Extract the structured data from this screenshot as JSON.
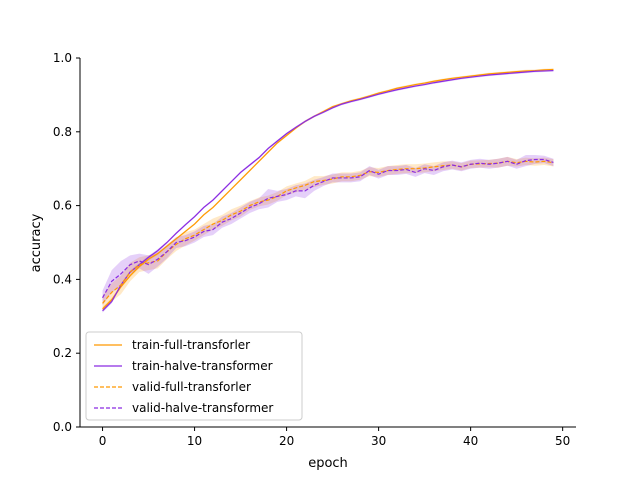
{
  "chart_data": {
    "type": "line",
    "xlabel": "epoch",
    "ylabel": "accuracy",
    "xlim": [
      -2.45,
      51.45
    ],
    "ylim": [
      0.0,
      1.0
    ],
    "xticks": [
      0,
      10,
      20,
      30,
      40,
      50
    ],
    "yticks": [
      0.0,
      0.2,
      0.4,
      0.6,
      0.8,
      1.0
    ],
    "xtick_labels": [
      "0",
      "10",
      "20",
      "30",
      "40",
      "50"
    ],
    "ytick_labels": [
      "0.0",
      "0.2",
      "0.4",
      "0.6",
      "0.8",
      "1.0"
    ],
    "grid": false,
    "legend_position": "lower-left",
    "x": [
      0,
      1,
      2,
      3,
      4,
      5,
      6,
      7,
      8,
      9,
      10,
      11,
      12,
      13,
      14,
      15,
      16,
      17,
      18,
      19,
      20,
      21,
      22,
      23,
      24,
      25,
      26,
      27,
      28,
      29,
      30,
      31,
      32,
      33,
      34,
      35,
      36,
      37,
      38,
      39,
      40,
      41,
      42,
      43,
      44,
      45,
      46,
      47,
      48,
      49
    ],
    "series": [
      {
        "name": "train-full-transforler",
        "color": "#ff9900",
        "dashed": false,
        "values": [
          0.32,
          0.345,
          0.38,
          0.41,
          0.435,
          0.455,
          0.47,
          0.49,
          0.51,
          0.53,
          0.55,
          0.575,
          0.595,
          0.62,
          0.645,
          0.67,
          0.695,
          0.72,
          0.745,
          0.77,
          0.79,
          0.81,
          0.828,
          0.842,
          0.855,
          0.868,
          0.876,
          0.884,
          0.89,
          0.897,
          0.905,
          0.911,
          0.918,
          0.923,
          0.928,
          0.932,
          0.937,
          0.941,
          0.945,
          0.948,
          0.951,
          0.954,
          0.957,
          0.959,
          0.961,
          0.963,
          0.965,
          0.966,
          0.968,
          0.969
        ],
        "band": [
          0.005,
          0.005,
          0.004,
          0.004,
          0.004,
          0.004,
          0.004,
          0.003,
          0.003,
          0.003,
          0.003,
          0.003,
          0.003,
          0.003,
          0.003,
          0.003,
          0.003,
          0.003,
          0.003,
          0.003,
          0.003,
          0.003,
          0.003,
          0.003,
          0.003,
          0.003,
          0.003,
          0.003,
          0.003,
          0.003,
          0.003,
          0.003,
          0.003,
          0.003,
          0.003,
          0.003,
          0.003,
          0.003,
          0.003,
          0.003,
          0.003,
          0.003,
          0.003,
          0.003,
          0.003,
          0.003,
          0.003,
          0.003,
          0.003,
          0.003
        ]
      },
      {
        "name": "train-halve-transformer",
        "color": "#8a2be2",
        "dashed": false,
        "values": [
          0.315,
          0.34,
          0.385,
          0.42,
          0.44,
          0.46,
          0.478,
          0.5,
          0.525,
          0.548,
          0.57,
          0.595,
          0.615,
          0.64,
          0.665,
          0.69,
          0.71,
          0.73,
          0.755,
          0.775,
          0.795,
          0.812,
          0.828,
          0.842,
          0.853,
          0.865,
          0.875,
          0.882,
          0.888,
          0.895,
          0.902,
          0.908,
          0.914,
          0.919,
          0.924,
          0.928,
          0.933,
          0.937,
          0.941,
          0.945,
          0.948,
          0.951,
          0.954,
          0.956,
          0.958,
          0.96,
          0.962,
          0.964,
          0.965,
          0.966
        ],
        "band": [
          0.005,
          0.005,
          0.004,
          0.004,
          0.004,
          0.004,
          0.004,
          0.003,
          0.003,
          0.003,
          0.003,
          0.003,
          0.003,
          0.003,
          0.003,
          0.003,
          0.003,
          0.003,
          0.003,
          0.003,
          0.003,
          0.003,
          0.003,
          0.003,
          0.003,
          0.003,
          0.003,
          0.003,
          0.003,
          0.003,
          0.003,
          0.003,
          0.003,
          0.003,
          0.003,
          0.003,
          0.003,
          0.003,
          0.003,
          0.003,
          0.003,
          0.003,
          0.003,
          0.003,
          0.003,
          0.003,
          0.003,
          0.003,
          0.003,
          0.003
        ]
      },
      {
        "name": "valid-full-transforler",
        "color": "#ff9900",
        "dashed": true,
        "values": [
          0.335,
          0.365,
          0.385,
          0.42,
          0.44,
          0.445,
          0.45,
          0.475,
          0.495,
          0.51,
          0.52,
          0.535,
          0.55,
          0.56,
          0.575,
          0.585,
          0.6,
          0.61,
          0.615,
          0.625,
          0.64,
          0.648,
          0.655,
          0.665,
          0.668,
          0.672,
          0.678,
          0.678,
          0.682,
          0.692,
          0.69,
          0.695,
          0.698,
          0.7,
          0.7,
          0.702,
          0.705,
          0.708,
          0.71,
          0.705,
          0.712,
          0.713,
          0.714,
          0.715,
          0.72,
          0.716,
          0.72,
          0.718,
          0.72,
          0.716
        ],
        "band": [
          0.02,
          0.025,
          0.025,
          0.025,
          0.02,
          0.02,
          0.02,
          0.02,
          0.018,
          0.018,
          0.015,
          0.015,
          0.015,
          0.015,
          0.015,
          0.015,
          0.012,
          0.012,
          0.012,
          0.012,
          0.012,
          0.012,
          0.012,
          0.015,
          0.012,
          0.012,
          0.012,
          0.012,
          0.012,
          0.012,
          0.012,
          0.012,
          0.012,
          0.012,
          0.012,
          0.012,
          0.012,
          0.012,
          0.01,
          0.01,
          0.01,
          0.01,
          0.01,
          0.012,
          0.012,
          0.01,
          0.01,
          0.01,
          0.01,
          0.01
        ]
      },
      {
        "name": "valid-halve-transformer",
        "color": "#8a2be2",
        "dashed": true,
        "values": [
          0.35,
          0.395,
          0.415,
          0.44,
          0.45,
          0.44,
          0.455,
          0.475,
          0.5,
          0.505,
          0.515,
          0.53,
          0.535,
          0.555,
          0.565,
          0.58,
          0.595,
          0.605,
          0.62,
          0.625,
          0.63,
          0.64,
          0.64,
          0.655,
          0.665,
          0.675,
          0.675,
          0.675,
          0.678,
          0.695,
          0.685,
          0.695,
          0.695,
          0.698,
          0.69,
          0.7,
          0.695,
          0.705,
          0.71,
          0.705,
          0.712,
          0.715,
          0.712,
          0.715,
          0.72,
          0.712,
          0.722,
          0.725,
          0.725,
          0.717
        ],
        "band": [
          0.02,
          0.03,
          0.035,
          0.025,
          0.02,
          0.025,
          0.02,
          0.018,
          0.015,
          0.015,
          0.015,
          0.015,
          0.015,
          0.015,
          0.015,
          0.015,
          0.015,
          0.015,
          0.025,
          0.015,
          0.015,
          0.015,
          0.02,
          0.015,
          0.012,
          0.012,
          0.012,
          0.012,
          0.012,
          0.012,
          0.012,
          0.012,
          0.012,
          0.012,
          0.012,
          0.012,
          0.012,
          0.012,
          0.012,
          0.012,
          0.012,
          0.012,
          0.012,
          0.012,
          0.012,
          0.012,
          0.015,
          0.012,
          0.01,
          0.01
        ]
      }
    ]
  }
}
